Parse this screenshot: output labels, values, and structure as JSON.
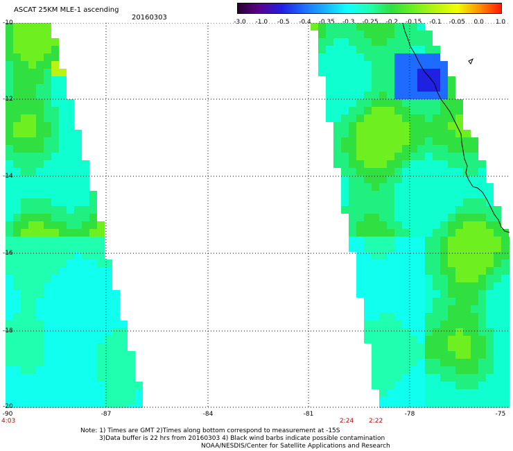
{
  "header": {
    "title": "ASCAT 25KM MLE-1 ascending",
    "date": "20160303"
  },
  "colorbar": {
    "labels": [
      "-3.0",
      "-1.0",
      "-0.5",
      "-0.4",
      "-0.35",
      "-0.3",
      "-0.25",
      "-0.2",
      "-0.15",
      "-0.1",
      "-0.05",
      "0.0",
      "1.0"
    ],
    "colors": [
      "#2a0030",
      "#5a0090",
      "#2020e0",
      "#1e6cff",
      "#18b4ff",
      "#10ffff",
      "#20ffb0",
      "#30e040",
      "#6ef020",
      "#b8f410",
      "#f0ff00",
      "#ff9000",
      "#ff1a00"
    ]
  },
  "axes": {
    "y_labels": [
      "-10",
      "-12",
      "-14",
      "-16",
      "-18",
      "-20"
    ],
    "x_labels": [
      "-90",
      "-87",
      "-84",
      "-81",
      "-78",
      "-75"
    ]
  },
  "times": {
    "left": "4:03",
    "mid1": "2:24",
    "mid2": "2:22"
  },
  "notes": {
    "line1": "Note: 1) Times are GMT 2)Times along bottom correspond to measurement at -15S",
    "line2": "3)Data buffer is 22 hrs from 20160303 4) Black wind barbs indicate possible contamination",
    "line3": "NOAA/NESDIS/Center for Satellite Applications and Research"
  }
}
